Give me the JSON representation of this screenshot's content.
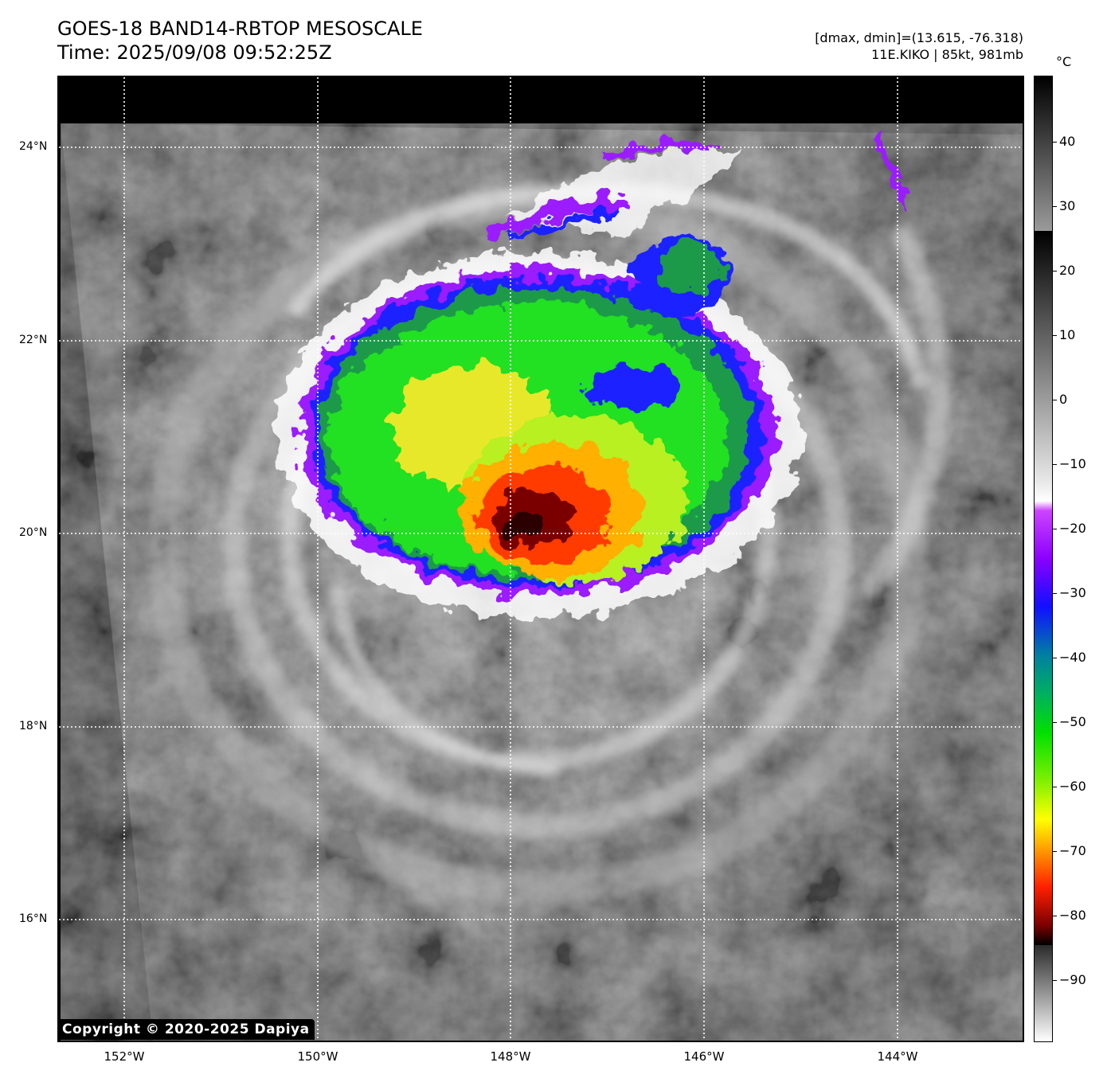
{
  "header": {
    "title": "GOES-18 BAND14-RBTOP MESOSCALE",
    "time": "Time: 2025/09/08 09:52:25Z",
    "range": "[dmax, dmin]=(13.615, -76.318)",
    "storm": "11E.KIKO | 85kt, 981mb"
  },
  "map": {
    "lat_labels": [
      "24°N",
      "22°N",
      "20°N",
      "18°N",
      "16°N"
    ],
    "lon_labels": [
      "152°W",
      "150°W",
      "148°W",
      "146°W",
      "144°W"
    ],
    "lat_values": [
      24,
      22,
      20,
      18,
      16
    ],
    "lon_values": [
      -152,
      -150,
      -148,
      -146,
      -144
    ],
    "storm_center": {
      "lon": -147.7,
      "lat": 20.3
    }
  },
  "colorbar": {
    "unit": "°C",
    "ticks": [
      "40",
      "30",
      "20",
      "10",
      "0",
      "−10",
      "−20",
      "−30",
      "−40",
      "−50",
      "−60",
      "−70",
      "−80",
      "−90"
    ],
    "tick_values": [
      40,
      30,
      20,
      10,
      0,
      -10,
      -20,
      -30,
      -40,
      -50,
      -60,
      -70,
      -80,
      -90
    ]
  },
  "footer": {
    "copyright": "Copyright © 2020-2025 Dapiya"
  }
}
